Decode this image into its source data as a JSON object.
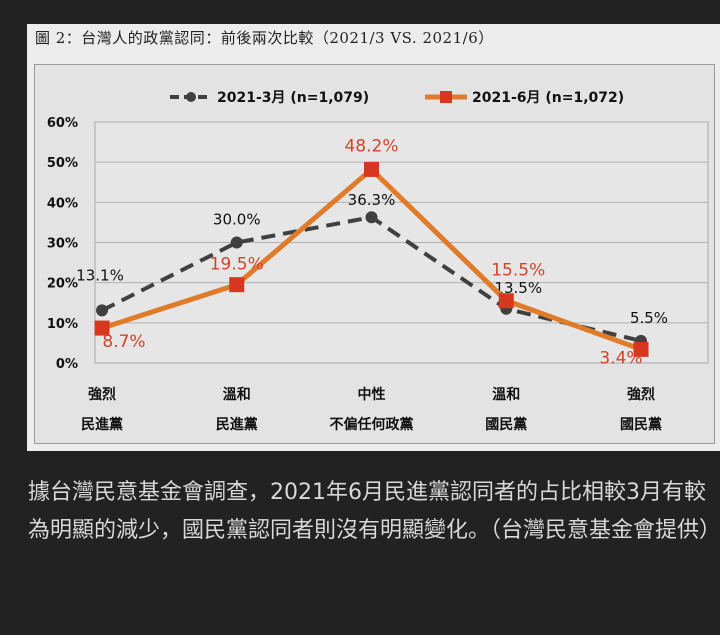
{
  "figure": {
    "title": "圖 2：台灣人的政黨認同：前後兩次比較（2021/3 VS. 2021/6）"
  },
  "chart_data": {
    "type": "line",
    "categories": [
      [
        "強烈",
        "民進黨"
      ],
      [
        "溫和",
        "民進黨"
      ],
      [
        "中性",
        "不偏任何政黨"
      ],
      [
        "溫和",
        "國民黨"
      ],
      [
        "強烈",
        "國民黨"
      ]
    ],
    "y_ticks": [
      "0%",
      "10%",
      "20%",
      "30%",
      "40%",
      "50%",
      "60%"
    ],
    "ylim": [
      0,
      60
    ],
    "grid": true,
    "legend_position": "top",
    "series": [
      {
        "name": "2021-3月 (n=1,079)",
        "values": [
          13.1,
          30.0,
          36.3,
          13.5,
          5.5
        ],
        "labels": [
          "13.1%",
          "30.0%",
          "36.3%",
          "13.5%",
          "5.5%"
        ],
        "color": "#404040",
        "style": "dashed",
        "marker": "circle"
      },
      {
        "name": "2021-6月 (n=1,072)",
        "values": [
          8.7,
          19.5,
          48.2,
          15.5,
          3.4
        ],
        "labels": [
          "8.7%",
          "19.5%",
          "48.2%",
          "15.5%",
          "3.4%"
        ],
        "color": "#e07b2a",
        "label_color": "#d1442a",
        "marker_color": "#d7361f",
        "style": "solid",
        "marker": "square"
      }
    ]
  },
  "caption": "據台灣民意基金會調查，2021年6月民進黨認同者的占比相較3月有較為明顯的減少，國民黨認同者則沒有明顯變化。（台灣民意基金會提供）"
}
